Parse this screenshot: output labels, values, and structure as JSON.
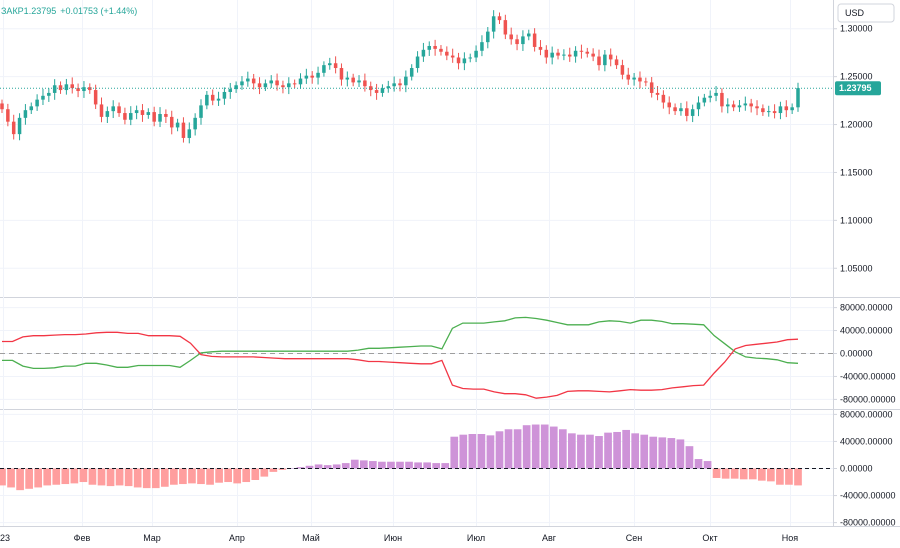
{
  "header": {
    "symbol_text": "ЗАКР1.23795",
    "change_text": "+0.01753 (+1.44%)"
  },
  "currency_button": "USD",
  "colors": {
    "up": "#26a69a",
    "down": "#ef5350",
    "net_long": "#4caf50",
    "net_short": "#f23645",
    "hist_pos": "#ce93d8",
    "hist_neg": "#ff9e9e",
    "last_price_tag": "#26a69a"
  },
  "chart_data": [
    {
      "type": "candlestick",
      "axis": "right",
      "ylim": [
        1.02,
        1.33
      ],
      "ticks": [
        "1.30000",
        "1.25000",
        "1.20000",
        "1.15000",
        "1.10000",
        "1.05000"
      ],
      "tick_values": [
        1.3,
        1.25,
        1.2,
        1.15,
        1.1,
        1.05
      ],
      "last_price": 1.23795,
      "last_price_label": "1.23795",
      "x_labels": [
        "23",
        "Фев",
        "Мар",
        "Апр",
        "Май",
        "Июн",
        "Июл",
        "Авг",
        "Сен",
        "Окт",
        "Ноя"
      ],
      "close": [
        1.216,
        1.203,
        1.19,
        1.207,
        1.215,
        1.219,
        1.226,
        1.23,
        1.233,
        1.241,
        1.236,
        1.242,
        1.238,
        1.235,
        1.239,
        1.236,
        1.221,
        1.208,
        1.214,
        1.219,
        1.212,
        1.205,
        1.212,
        1.215,
        1.21,
        1.213,
        1.203,
        1.211,
        1.208,
        1.197,
        1.202,
        1.186,
        1.195,
        1.207,
        1.22,
        1.231,
        1.225,
        1.227,
        1.234,
        1.237,
        1.241,
        1.245,
        1.248,
        1.243,
        1.239,
        1.243,
        1.246,
        1.241,
        1.239,
        1.243,
        1.242,
        1.248,
        1.251,
        1.249,
        1.254,
        1.262,
        1.264,
        1.259,
        1.247,
        1.249,
        1.244,
        1.246,
        1.24,
        1.236,
        1.233,
        1.238,
        1.24,
        1.243,
        1.241,
        1.25,
        1.259,
        1.271,
        1.278,
        1.282,
        1.279,
        1.276,
        1.272,
        1.27,
        1.264,
        1.269,
        1.27,
        1.277,
        1.286,
        1.297,
        1.313,
        1.309,
        1.294,
        1.289,
        1.284,
        1.292,
        1.295,
        1.281,
        1.278,
        1.27,
        1.275,
        1.272,
        1.273,
        1.271,
        1.277,
        1.276,
        1.274,
        1.271,
        1.262,
        1.273,
        1.268,
        1.262,
        1.252,
        1.247,
        1.249,
        1.245,
        1.244,
        1.233,
        1.231,
        1.223,
        1.218,
        1.214,
        1.217,
        1.209,
        1.216,
        1.223,
        1.228,
        1.23,
        1.233,
        1.219,
        1.221,
        1.218,
        1.22,
        1.222,
        1.219,
        1.217,
        1.213,
        1.214,
        1.212,
        1.219,
        1.215,
        1.218,
        1.238
      ],
      "panel": "price"
    },
    {
      "type": "line",
      "axis": "right",
      "ylim": [
        -95000,
        95000
      ],
      "ticks": [
        "80000.00000",
        "40000.00000",
        "0.00000",
        "-40000.00000",
        "-80000.00000"
      ],
      "tick_values": [
        80000,
        40000,
        0,
        -40000,
        -80000
      ],
      "x_labels": [],
      "series": [
        {
          "values": [
            -12000,
            -12000,
            -22000,
            -26000,
            -26000,
            -25000,
            -22000,
            -22000,
            -17000,
            -17000,
            -20000,
            -24000,
            -24000,
            -21000,
            -21000,
            -21000,
            -21000,
            -24000,
            -12000,
            1000,
            3000,
            4000,
            4000,
            4000,
            4000,
            4000,
            4000,
            4000,
            4000,
            4000,
            4000,
            4000,
            4000,
            4000,
            6000,
            9000,
            9000,
            10000,
            11000,
            12000,
            13000,
            13000,
            8000,
            44000,
            53000,
            53000,
            53000,
            55000,
            57000,
            62000,
            63000,
            61000,
            58000,
            54000,
            50000,
            50000,
            50000,
            55000,
            57000,
            56000,
            53000,
            58000,
            58000,
            56000,
            52000,
            52000,
            51000,
            50000,
            31000,
            17000,
            3000,
            -6000,
            -8000,
            -9000,
            -11000,
            -16000,
            -17000
          ],
          "color_key": "net_long"
        },
        {
          "values": [
            21000,
            21000,
            29000,
            31000,
            31000,
            32000,
            33000,
            33000,
            34000,
            36000,
            37000,
            37000,
            35000,
            35000,
            31000,
            31000,
            31000,
            30000,
            18000,
            -2000,
            -5000,
            -6000,
            -6000,
            -6000,
            -6000,
            -7000,
            -8000,
            -9000,
            -9000,
            -9000,
            -9000,
            -9000,
            -9000,
            -9000,
            -11000,
            -14000,
            -14000,
            -15000,
            -16000,
            -17000,
            -18000,
            -18000,
            -12000,
            -55000,
            -61000,
            -62000,
            -62000,
            -67000,
            -70000,
            -70000,
            -72000,
            -78000,
            -76000,
            -73000,
            -66000,
            -65000,
            -65000,
            -66000,
            -67000,
            -65000,
            -63000,
            -64000,
            -64000,
            -63000,
            -60000,
            -58000,
            -56000,
            -55000,
            -34000,
            -15000,
            8000,
            14000,
            16000,
            18000,
            20000,
            24000,
            25000
          ],
          "color_key": "net_short"
        }
      ],
      "panel": "cot_lines"
    },
    {
      "type": "bar",
      "axis": "right",
      "ylim": [
        -85000,
        85000
      ],
      "ticks": [
        "80000.00000",
        "40000.00000",
        "0.00000",
        "-40000.00000",
        "-80000.00000"
      ],
      "tick_values": [
        80000,
        40000,
        0,
        -40000,
        -80000
      ],
      "x_labels": [],
      "values": [
        -25000,
        -28000,
        -32000,
        -30000,
        -28000,
        -25000,
        -24000,
        -23000,
        -22000,
        -20000,
        -24000,
        -25000,
        -26000,
        -25000,
        -26000,
        -28000,
        -29000,
        -29000,
        -27000,
        -24000,
        -23000,
        -22000,
        -23000,
        -24000,
        -21000,
        -20000,
        -22000,
        -20000,
        -17000,
        -12000,
        -5000,
        -2000,
        0,
        2000,
        4000,
        6000,
        5000,
        6000,
        8000,
        13000,
        12000,
        11000,
        10000,
        10000,
        10000,
        10000,
        9000,
        9000,
        8000,
        8000,
        47000,
        50000,
        51000,
        51000,
        49000,
        55000,
        58000,
        58000,
        64000,
        65000,
        65000,
        62000,
        58000,
        52000,
        50000,
        50000,
        48000,
        53000,
        54000,
        57000,
        52000,
        50000,
        47000,
        46000,
        45000,
        43000,
        33000,
        14000,
        11000,
        -14000,
        -15000,
        -15000,
        -16000,
        -16000,
        -18000,
        -19000,
        -24000,
        -24000,
        -25000
      ],
      "color_pos_key": "hist_pos",
      "color_neg_key": "hist_neg",
      "panel": "cot_hist"
    }
  ]
}
